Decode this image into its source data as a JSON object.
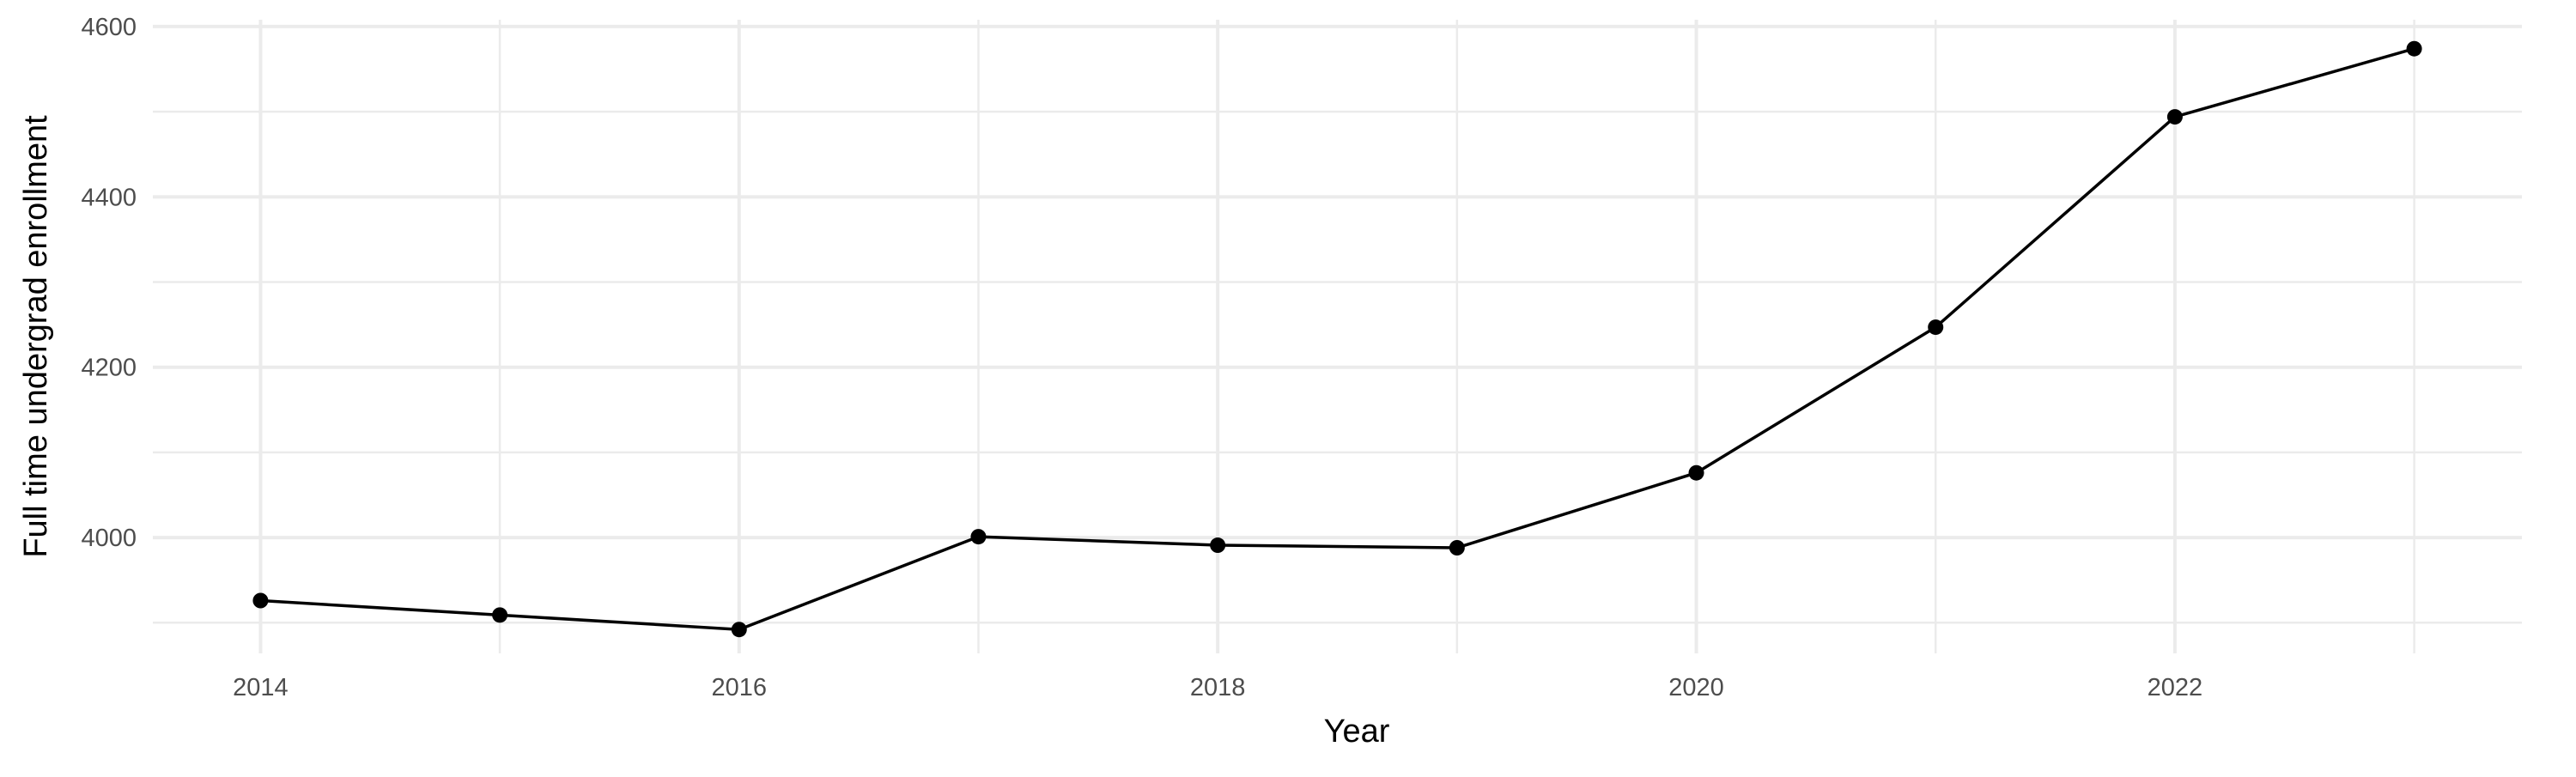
{
  "chart_data": {
    "type": "line",
    "title": "",
    "xlabel": "Year",
    "ylabel": "Full time undergrad enrollment",
    "x": [
      2014,
      2015,
      2016,
      2017,
      2018,
      2019,
      2020,
      2021,
      2022,
      2023
    ],
    "series": [
      {
        "values": [
          3926,
          3909,
          3892,
          4001,
          3991,
          3988,
          4076,
          4247,
          4494,
          4574
        ],
        "color": "#000000"
      }
    ],
    "xlim": [
      2013.55,
      2023.45
    ],
    "ylim": [
      3864,
      4608
    ],
    "x_ticks": [
      "2014",
      "2016",
      "2018",
      "2020",
      "2022"
    ],
    "y_ticks": [
      "4000",
      "4200",
      "4400",
      "4600"
    ],
    "grid": true,
    "legend": "none",
    "markers": true
  }
}
